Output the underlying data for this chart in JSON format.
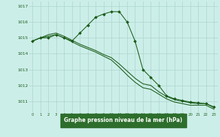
{
  "title": "Graphe pression niveau de la mer (hPa)",
  "background_color": "#cceee8",
  "label_bg_color": "#2d6e2d",
  "grid_color": "#aad4cc",
  "line_color": "#1a5c1a",
  "marker_color": "#1a5c1a",
  "xlim": [
    -0.5,
    23.5
  ],
  "ylim": [
    1010.3,
    1017.3
  ],
  "yticks": [
    1011,
    1012,
    1013,
    1014,
    1015,
    1016,
    1017
  ],
  "xticks": [
    0,
    1,
    2,
    3,
    4,
    5,
    6,
    7,
    8,
    9,
    10,
    11,
    12,
    13,
    14,
    15,
    16,
    17,
    18,
    19,
    20,
    21,
    22,
    23
  ],
  "series": [
    {
      "x": [
        0,
        1,
        2,
        3,
        4,
        5,
        6,
        7,
        8,
        9,
        10,
        11,
        12,
        13,
        14,
        15,
        16,
        17,
        18,
        19,
        20,
        21,
        22,
        23
      ],
      "y": [
        1014.8,
        1015.0,
        1015.0,
        1015.2,
        1015.0,
        1014.8,
        1015.3,
        1015.8,
        1016.3,
        1016.5,
        1016.65,
        1016.65,
        1016.0,
        1014.8,
        1013.0,
        1012.5,
        1012.0,
        1011.35,
        1011.15,
        1011.05,
        1010.95,
        1010.9,
        1010.85,
        1010.65
      ],
      "has_markers": true
    },
    {
      "x": [
        0,
        1,
        2,
        3,
        4,
        5,
        6,
        7,
        8,
        9,
        10,
        11,
        12,
        13,
        14,
        15,
        16,
        17,
        18,
        19,
        20,
        21,
        22,
        23
      ],
      "y": [
        1014.8,
        1015.0,
        1015.2,
        1015.3,
        1015.1,
        1014.85,
        1014.6,
        1014.4,
        1014.2,
        1013.95,
        1013.75,
        1013.35,
        1012.9,
        1012.45,
        1012.1,
        1012.0,
        1011.6,
        1011.3,
        1011.1,
        1011.0,
        1010.9,
        1010.85,
        1010.85,
        1010.6
      ],
      "has_markers": false
    },
    {
      "x": [
        0,
        1,
        2,
        3,
        4,
        5,
        6,
        7,
        8,
        9,
        10,
        11,
        12,
        13,
        14,
        15,
        16,
        17,
        18,
        19,
        20,
        21,
        22,
        23
      ],
      "y": [
        1014.8,
        1015.0,
        1015.1,
        1015.2,
        1015.0,
        1014.75,
        1014.5,
        1014.3,
        1014.1,
        1013.85,
        1013.6,
        1013.15,
        1012.65,
        1012.2,
        1011.85,
        1011.75,
        1011.45,
        1011.15,
        1010.95,
        1010.85,
        1010.75,
        1010.75,
        1010.75,
        1010.5
      ],
      "has_markers": false
    }
  ]
}
